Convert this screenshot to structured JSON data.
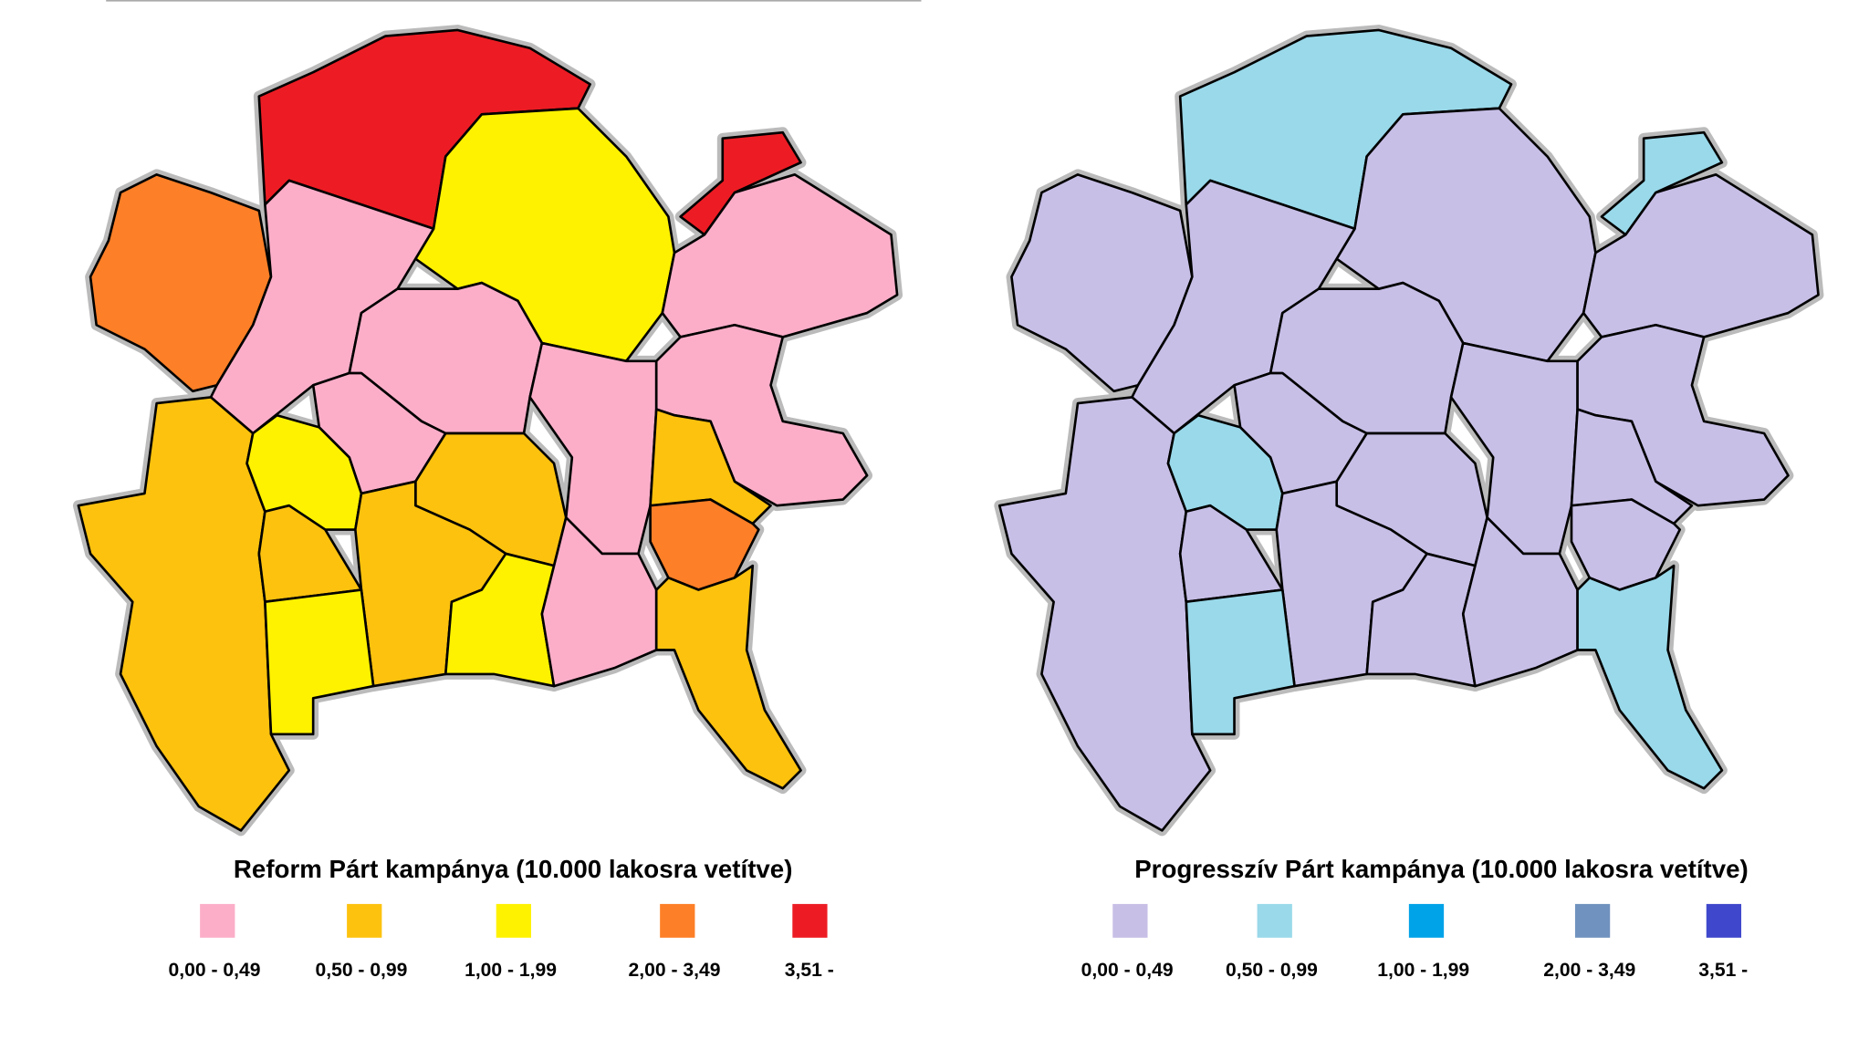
{
  "maps": [
    {
      "title": "Reform Párt kampánya (10.000 lakosra vetítve)",
      "legend": [
        {
          "label": "0,00 - 0,49",
          "color": "#fcaec9"
        },
        {
          "label": "0,50 - 0,99",
          "color": "#fdc20e"
        },
        {
          "label": "1,00 - 1,99",
          "color": "#fff200"
        },
        {
          "label": "2,00 - 3,49",
          "color": "#fd7f27"
        },
        {
          "label": "3,51 -",
          "color": "#ed1c24"
        }
      ],
      "region_colors": [
        "#fd7f27",
        "#ed1c24",
        "#ed1c24",
        "#fff200",
        "#fcaec9",
        "#fcaec9",
        "#fcaec9",
        "#fcaec9",
        "#fcaec9",
        "#fcaec9",
        "#fdc20e",
        "#fff200",
        "#fdc20e",
        "#fdc20e",
        "#fdc20e",
        "#fff200",
        "#fff200",
        "#fcaec9",
        "#fdc20e",
        "#fd7f27",
        "#fdc20e"
      ]
    },
    {
      "title": "Progresszív Párt kampánya (10.000 lakosra vetítve)",
      "legend": [
        {
          "label": "0,00 - 0,49",
          "color": "#c8bfe7"
        },
        {
          "label": "0,50 - 0,99",
          "color": "#99d9ea"
        },
        {
          "label": "1,00 - 1,99",
          "color": "#00a2e8"
        },
        {
          "label": "2,00 - 3,49",
          "color": "#7092be"
        },
        {
          "label": "3,51 -",
          "color": "#3f48cc"
        }
      ],
      "region_colors": [
        "#c8bfe7",
        "#99d9ea",
        "#99d9ea",
        "#c8bfe7",
        "#c8bfe7",
        "#c8bfe7",
        "#c8bfe7",
        "#c8bfe7",
        "#c8bfe7",
        "#c8bfe7",
        "#c8bfe7",
        "#99d9ea",
        "#c8bfe7",
        "#c8bfe7",
        "#c8bfe7",
        "#99d9ea",
        "#c8bfe7",
        "#c8bfe7",
        "#c8bfe7",
        "#c8bfe7",
        "#99d9ea"
      ]
    }
  ]
}
